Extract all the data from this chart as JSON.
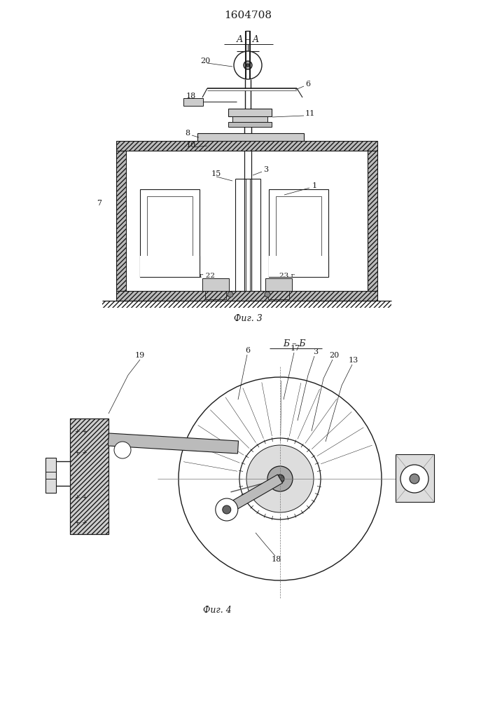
{
  "title": "1604708",
  "fig3_caption": "Фиг. 3",
  "fig4_caption": "Фиг. 4",
  "fig3_section": "А – А",
  "fig4_section": "Б – Б",
  "bg_color": "#ffffff",
  "lc": "#1a1a1a",
  "gray1": "#bbbbbb",
  "gray2": "#888888",
  "gray3": "#cccccc"
}
